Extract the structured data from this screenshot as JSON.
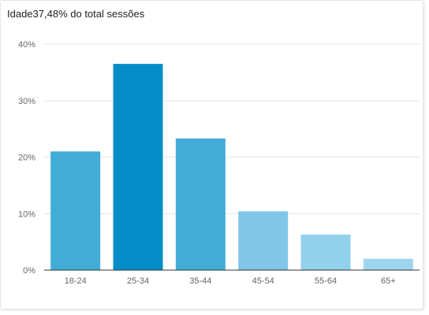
{
  "chart_data": {
    "type": "bar",
    "title_prefix": "Idade",
    "title_suffix": "37,48% do total sessões",
    "categories": [
      "18-24",
      "25-34",
      "35-44",
      "45-54",
      "55-64",
      "65+"
    ],
    "values": [
      21,
      36.5,
      23.3,
      10.4,
      6.3,
      2
    ],
    "ylim": [
      0,
      40
    ],
    "yticks": [
      0,
      10,
      20,
      30,
      40
    ],
    "ytick_labels": [
      "0%",
      "10%",
      "20%",
      "30%",
      "40%"
    ],
    "grid": true,
    "colors": [
      "#41acd8",
      "#058dc7",
      "#41acd8",
      "#80c6e8",
      "#91d1ec",
      "#9dd6ee"
    ]
  }
}
